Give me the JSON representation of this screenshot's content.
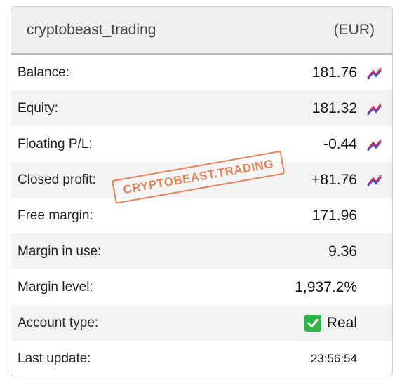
{
  "header": {
    "account_name": "cryptobeast_trading",
    "currency": "(EUR)"
  },
  "rows": [
    {
      "label": "Balance:",
      "value": "181.76",
      "has_chart": true
    },
    {
      "label": "Equity:",
      "value": "181.32",
      "has_chart": true
    },
    {
      "label": "Floating P/L:",
      "value": "-0.44",
      "has_chart": true
    },
    {
      "label": "Closed profit:",
      "value": "+81.76",
      "has_chart": true
    },
    {
      "label": "Free margin:",
      "value": "171.96",
      "has_chart": false
    },
    {
      "label": "Margin in use:",
      "value": "9.36",
      "has_chart": false
    },
    {
      "label": "Margin level:",
      "value": "1,937.2%",
      "has_chart": false
    },
    {
      "label": "Account type:",
      "value": "Real",
      "has_chart": false
    },
    {
      "label": "Last update:",
      "value": "23:56:54",
      "has_chart": false
    }
  ],
  "watermark": "CRYPTOBEAST.TRADING",
  "icons": {
    "chart": "chart-line-icon",
    "check": "checkmark-icon"
  },
  "colors": {
    "chart_red": "#e0304a",
    "chart_blue": "#3a4ad8",
    "check_green": "#2fb84a",
    "stamp": "#e07a4a"
  }
}
